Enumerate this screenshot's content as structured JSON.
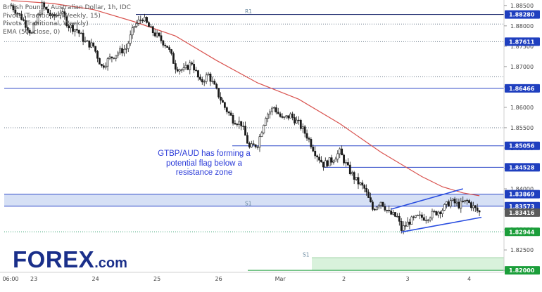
{
  "legend": {
    "line1": "British Pound / Australian Dollar, 1h, IDC",
    "line2": "Pivots (Traditional, Weekly, 15)",
    "line3": "Pivots (Traditional, Weekly)",
    "line4": "EMA (50, close, 0)"
  },
  "annotation": {
    "line1": "GTBP/AUD has forming a",
    "line2": "potential flag below a",
    "line3": "resistance zone"
  },
  "logo": {
    "main": "FOREX",
    "suffix": ".com"
  },
  "colors": {
    "candle": "#1a1a1a",
    "ema": "#d9534f",
    "level": "#2f49c8",
    "pivot_dotted": "#2a9d6a",
    "zone_fill": "#d6e0f5",
    "pivot_fill": "#d9f2dc",
    "label_blue": "#1f3fbf",
    "label_green": "#1b9e3a",
    "label_gray": "#5a5a5a",
    "flag": "#2a4ee0"
  },
  "chart_data": {
    "type": "candlestick",
    "title": "British Pound / Australian Dollar, 1h, IDC",
    "ylim": [
      1.8195,
      1.886
    ],
    "x_tick_labels": [
      "06:00",
      "23",
      "24",
      "25",
      "26",
      "Mar",
      "2",
      "3",
      "4"
    ],
    "y_tick_labels": [
      "1.88500",
      "1.88000",
      "1.87500",
      "1.87000",
      "1.86500",
      "1.86000",
      "1.85500",
      "1.85000",
      "1.84500",
      "1.84000",
      "1.83500",
      "1.83000",
      "1.82500",
      "1.82000"
    ],
    "y_tick_values": [
      1.885,
      1.88,
      1.875,
      1.87,
      1.865,
      1.86,
      1.855,
      1.85,
      1.845,
      1.84,
      1.835,
      1.83,
      1.825,
      1.82
    ],
    "price_labels": [
      {
        "text": "1.88280",
        "value": 1.8828,
        "style": "blue"
      },
      {
        "text": "1.87611",
        "value": 1.87611,
        "style": "blue"
      },
      {
        "text": "1.86466",
        "value": 1.86466,
        "style": "blue"
      },
      {
        "text": "1.85056",
        "value": 1.85056,
        "style": "blue"
      },
      {
        "text": "1.84528",
        "value": 1.84528,
        "style": "blue"
      },
      {
        "text": "1.83869",
        "value": 1.83869,
        "style": "blue"
      },
      {
        "text": "1.83573",
        "value": 1.83573,
        "style": "blue"
      },
      {
        "text": "1.83416",
        "value": 1.83416,
        "style": "gray"
      },
      {
        "text": "1.82944",
        "value": 1.82944,
        "style": "green"
      },
      {
        "text": "1.82000",
        "value": 1.82,
        "style": "green"
      }
    ],
    "horizontal_levels": [
      {
        "value": 1.8828,
        "kind": "solid",
        "label": "R1"
      },
      {
        "value": 1.88045,
        "kind": "dotted"
      },
      {
        "value": 1.87611,
        "kind": "dotted"
      },
      {
        "value": 1.8675,
        "kind": "dotted"
      },
      {
        "value": 1.86466,
        "kind": "solid"
      },
      {
        "value": 1.855,
        "kind": "dotted"
      },
      {
        "value": 1.85056,
        "kind": "solid"
      },
      {
        "value": 1.84528,
        "kind": "solid"
      },
      {
        "value": 1.83869,
        "kind": "zone_top"
      },
      {
        "value": 1.83573,
        "kind": "zone_bottom",
        "label": "S1"
      },
      {
        "value": 1.82944,
        "kind": "dotted"
      },
      {
        "value": 1.8231,
        "kind": "pivot_zone_top",
        "label": "S1"
      },
      {
        "value": 1.82,
        "kind": "solid_green"
      }
    ],
    "path": [
      [
        0,
        1.885
      ],
      [
        5,
        1.882
      ],
      [
        10,
        1.878
      ],
      [
        15,
        1.885
      ],
      [
        20,
        1.882
      ],
      [
        24,
        1.8835
      ],
      [
        28,
        1.88
      ],
      [
        32,
        1.879
      ],
      [
        36,
        1.876
      ],
      [
        40,
        1.875
      ],
      [
        44,
        1.87
      ],
      [
        48,
        1.872
      ],
      [
        52,
        1.8735
      ],
      [
        56,
        1.8745
      ],
      [
        60,
        1.88
      ],
      [
        64,
        1.882
      ],
      [
        68,
        1.879
      ],
      [
        72,
        1.877
      ],
      [
        76,
        1.875
      ],
      [
        80,
        1.87
      ],
      [
        84,
        1.869
      ],
      [
        88,
        1.871
      ],
      [
        92,
        1.866
      ],
      [
        96,
        1.868
      ],
      [
        100,
        1.864
      ],
      [
        104,
        1.86
      ],
      [
        108,
        1.857
      ],
      [
        112,
        1.856
      ],
      [
        116,
        1.85
      ],
      [
        120,
        1.851
      ],
      [
        124,
        1.858
      ],
      [
        128,
        1.86
      ],
      [
        132,
        1.857
      ],
      [
        136,
        1.858
      ],
      [
        140,
        1.856
      ],
      [
        144,
        1.853
      ],
      [
        148,
        1.849
      ],
      [
        152,
        1.846
      ],
      [
        156,
        1.847
      ],
      [
        160,
        1.849
      ],
      [
        164,
        1.845
      ],
      [
        168,
        1.842
      ],
      [
        172,
        1.84
      ],
      [
        176,
        1.835
      ],
      [
        180,
        1.837
      ],
      [
        184,
        1.834
      ],
      [
        188,
        1.833
      ],
      [
        190,
        1.83
      ],
      [
        194,
        1.832
      ],
      [
        198,
        1.833
      ],
      [
        202,
        1.833
      ],
      [
        206,
        1.834
      ],
      [
        210,
        1.835
      ],
      [
        214,
        1.837
      ],
      [
        218,
        1.836
      ],
      [
        222,
        1.837
      ],
      [
        226,
        1.835
      ],
      [
        228,
        1.8342
      ]
    ],
    "ema_50": [
      [
        0,
        1.8862
      ],
      [
        20,
        1.8855
      ],
      [
        40,
        1.884
      ],
      [
        60,
        1.881
      ],
      [
        80,
        1.8775
      ],
      [
        100,
        1.8715
      ],
      [
        120,
        1.866
      ],
      [
        140,
        1.862
      ],
      [
        160,
        1.856
      ],
      [
        180,
        1.849
      ],
      [
        200,
        1.843
      ],
      [
        210,
        1.8405
      ],
      [
        220,
        1.839
      ],
      [
        228,
        1.8383
      ]
    ],
    "flag_lines": [
      {
        "from": [
          185,
          1.835
        ],
        "to": [
          220,
          1.84
        ]
      },
      {
        "from": [
          190,
          1.8294
        ],
        "to": [
          229,
          1.833
        ]
      }
    ]
  }
}
